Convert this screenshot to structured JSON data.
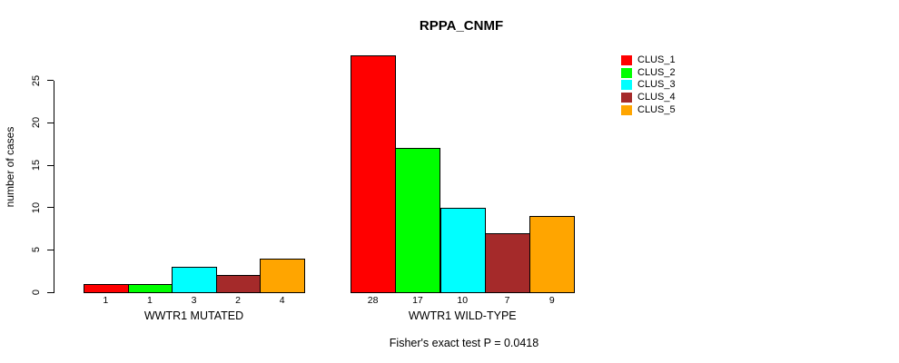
{
  "chart_data": {
    "type": "bar",
    "title": "RPPA_CNMF",
    "xlabel": "",
    "ylabel": "number of cases",
    "ylim": [
      0,
      25
    ],
    "yticks": [
      0,
      5,
      10,
      15,
      20,
      25
    ],
    "grid": false,
    "legend_position": "right",
    "groups": [
      {
        "label": "WWTR1 MUTATED",
        "values": [
          1,
          1,
          3,
          2,
          4
        ]
      },
      {
        "label": "WWTR1 WILD-TYPE",
        "values": [
          28,
          17,
          10,
          7,
          9
        ]
      }
    ],
    "series_colors": [
      "#FF0000",
      "#00FF00",
      "#00FFFF",
      "#A52A2A",
      "#FFA500"
    ],
    "legend": [
      {
        "label": "CLUS_1",
        "color": "#FF0000"
      },
      {
        "label": "CLUS_2",
        "color": "#00FF00"
      },
      {
        "label": "CLUS_3",
        "color": "#00FFFF"
      },
      {
        "label": "CLUS_4",
        "color": "#A52A2A"
      },
      {
        "label": "CLUS_5",
        "color": "#FFA500"
      }
    ],
    "annotation": "Fisher's exact test P = 0.0418",
    "bar_border_color": "#000000",
    "axis_color": "#000000"
  }
}
